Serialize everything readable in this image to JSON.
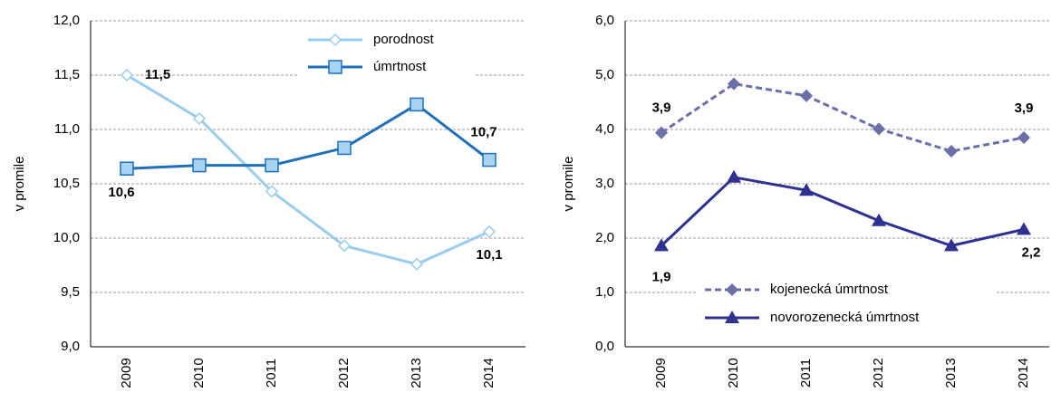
{
  "chart_data": [
    {
      "type": "line",
      "ylabel": "v promile",
      "categories": [
        "2009",
        "2010",
        "2011",
        "2012",
        "2013",
        "2014"
      ],
      "ylim": [
        9,
        12
      ],
      "yticks": [
        {
          "value": 9,
          "label": "9,0"
        },
        {
          "value": 9.5,
          "label": "9,5"
        },
        {
          "value": 10,
          "label": "10,0"
        },
        {
          "value": 10.5,
          "label": "10,5"
        },
        {
          "value": 11,
          "label": "11,0"
        },
        {
          "value": 11.5,
          "label": "11,5"
        },
        {
          "value": 12,
          "label": "12,0"
        }
      ],
      "grid": true,
      "legend": "upper center",
      "series": [
        {
          "name": "porodnost",
          "color": "#99ccee",
          "marker": "diamond",
          "linestyle": "solid",
          "values": [
            11.5,
            11.1,
            10.43,
            9.93,
            9.76,
            10.06
          ],
          "value_labels": [
            "11,5",
            null,
            null,
            null,
            null,
            "10,1"
          ]
        },
        {
          "name": "úmrtnost",
          "color": "#1f6fba",
          "marker": "square",
          "linestyle": "solid",
          "values": [
            10.64,
            10.67,
            10.67,
            10.83,
            11.23,
            10.72
          ],
          "value_labels": [
            "10,6",
            null,
            null,
            null,
            null,
            "10,7"
          ]
        }
      ]
    },
    {
      "type": "line",
      "ylabel": "v promile",
      "categories": [
        "2009",
        "2010",
        "2011",
        "2012",
        "2013",
        "2014"
      ],
      "ylim": [
        0,
        6
      ],
      "yticks": [
        {
          "value": 0,
          "label": "0,0"
        },
        {
          "value": 1,
          "label": "1,0"
        },
        {
          "value": 2,
          "label": "2,0"
        },
        {
          "value": 3,
          "label": "3,0"
        },
        {
          "value": 4,
          "label": "4,0"
        },
        {
          "value": 5,
          "label": "5,0"
        },
        {
          "value": 6,
          "label": "6,0"
        }
      ],
      "grid": true,
      "legend": "lower left",
      "series": [
        {
          "name": "kojenecká úmrtnost",
          "color": "#6b6fa8",
          "marker": "diamond",
          "linestyle": "dashed",
          "values": [
            3.94,
            4.84,
            4.62,
            4.01,
            3.6,
            3.85
          ],
          "value_labels": [
            "3,9",
            null,
            null,
            null,
            null,
            "3,9"
          ]
        },
        {
          "name": "novorozenecká úmrtnost",
          "color": "#2e3192",
          "marker": "triangle",
          "linestyle": "solid",
          "values": [
            1.86,
            3.12,
            2.88,
            2.32,
            1.86,
            2.16
          ],
          "value_labels": [
            "1,9",
            null,
            null,
            null,
            null,
            "2,2"
          ]
        }
      ]
    }
  ]
}
